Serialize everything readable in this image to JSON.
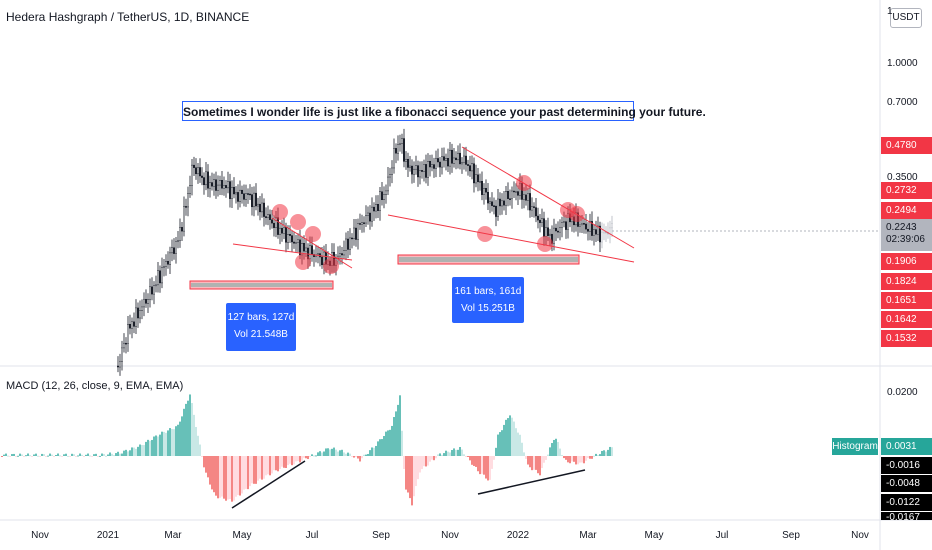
{
  "header": {
    "symbol_title": "Hedera Hashgraph / TetherUS, 1D, BINANCE",
    "currency": "USDT"
  },
  "price_axis": {
    "labels": [
      "1.0000",
      "0.7000",
      "0.3500"
    ],
    "top_fragment": "1"
  },
  "price_tags": [
    {
      "value": "0.4780",
      "color": "#f23645"
    },
    {
      "value": "0.2732",
      "color": "#f23645"
    },
    {
      "value": "0.2494",
      "color": "#f23645"
    },
    {
      "value": "0.1906",
      "color": "#f23645"
    },
    {
      "value": "0.1824",
      "color": "#f23645"
    },
    {
      "value": "0.1651",
      "color": "#f23645"
    },
    {
      "value": "0.1642",
      "color": "#f23645"
    },
    {
      "value": "0.1532",
      "color": "#f23645"
    }
  ],
  "current_price": {
    "value": "0.2243",
    "countdown": "02:39:06"
  },
  "annotation": {
    "quote": "Sometimes I wonder life is just like a fibonacci sequence your past determining your future."
  },
  "range_boxes": [
    {
      "bars": "127 bars, 127d",
      "volume": "Vol 21.548B"
    },
    {
      "bars": "161 bars, 161d",
      "volume": "Vol 15.251B"
    }
  ],
  "macd": {
    "title": "MACD (12, 26, close, 9, EMA, EMA)",
    "axis_label": "0.0200",
    "histogram_label": "Histogram",
    "histogram_value": "0.0031",
    "negative_tags": [
      "-0.0016",
      "-0.0048",
      "-0.0122",
      "-0.0167"
    ]
  },
  "time_axis": [
    "Nov",
    "2021",
    "Mar",
    "May",
    "Jul",
    "Sep",
    "Nov",
    "2022",
    "Mar",
    "May",
    "Jul",
    "Sep",
    "Nov"
  ],
  "colors": {
    "up": "#26a69a",
    "down": "#ef5350",
    "trendline": "#f23645",
    "accent": "#2962ff",
    "candle": "#131722"
  }
}
